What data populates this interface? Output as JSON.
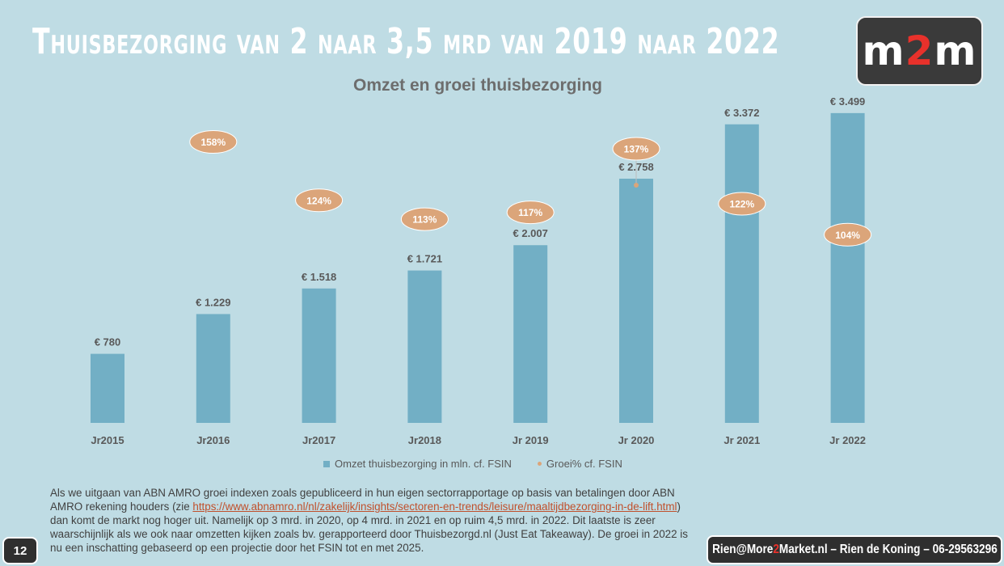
{
  "slide": {
    "title": "Thuisbezorging van 2 naar 3,5 mrd van 2019 naar 2022",
    "logo": {
      "left": "m",
      "accent": "2",
      "right": "m"
    },
    "note_parts": [
      "Als we uitgaan van ABN AMRO groei indexen zoals gepubliceerd in hun eigen sectorrapportage op basis van betalingen door ABN AMRO rekening houders (zie ",
      "https://www.abnamro.nl/nl/zakelijk/insights/sectoren-en-trends/leisure/maaltijdbezorging-in-de-lift.html",
      ") dan komt de markt nog hoger uit. Namelijk op 3 mrd. in 2020, op 4 mrd. in 2021 en op ruim 4,5 mrd. in 2022. Dit laatste is zeer waarschijnlijk als we ook naar omzetten kijken zoals bv. gerapporteerd door Thuisbezorgd.nl (Just Eat Takeaway). De groei in 2022 is nu een inschatting gebaseerd op een projectie door het FSIN tot en met 2025."
    ],
    "page_number": "12",
    "contact": {
      "part1": "Rien@More",
      "accent": "2",
      "part2": "Market.nl – Rien de Koning – 06-29563296"
    }
  },
  "chart_data": {
    "type": "bar",
    "title": "Omzet en groei thuisbezorging",
    "categories": [
      "Jr2015",
      "Jr2016",
      "Jr2017",
      "Jr2018",
      "Jr 2019",
      "Jr 2020",
      "Jr 2021",
      "Jr 2022"
    ],
    "series": [
      {
        "name": "Omzet thuisbezorging in mln. cf. FSIN",
        "values": [
          780,
          1229,
          1518,
          1721,
          2007,
          2758,
          3372,
          3499
        ],
        "labels": [
          "€ 780",
          "€ 1.229",
          "€ 1.518",
          "€ 1.721",
          "€ 2.007",
          "€ 2.758",
          "€ 3.372",
          "€ 3.499"
        ],
        "color": "#72afc5"
      },
      {
        "name": "Groei% cf. FSIN",
        "values": [
          null,
          158,
          124,
          113,
          117,
          137,
          122,
          104
        ],
        "labels": [
          "",
          "158%",
          "124%",
          "113%",
          "117%",
          "137%",
          "122%",
          "104%"
        ],
        "color": "#dba57a"
      }
    ],
    "ylim": [
      0,
      4000
    ],
    "grid": false,
    "legend_position": "bottom"
  }
}
